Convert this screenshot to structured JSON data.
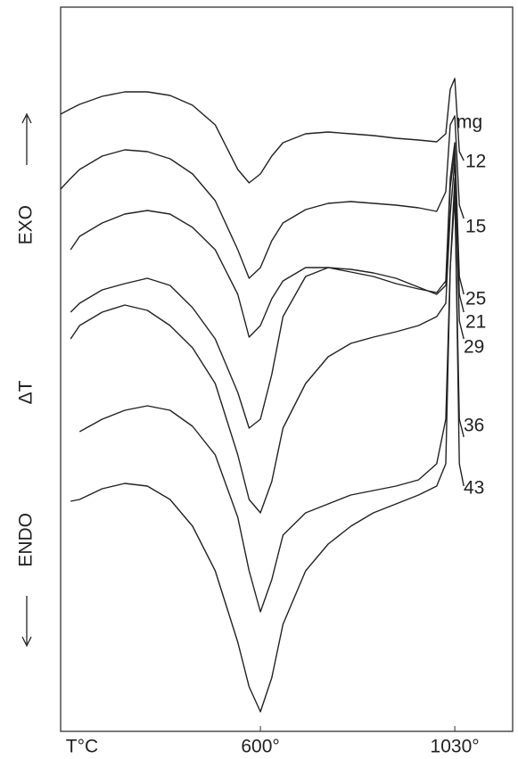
{
  "chart_data": {
    "type": "line",
    "xlabel": "T°C",
    "ylabel_top": "EXO",
    "ylabel": "ΔT",
    "ylabel_bottom": "ENDO",
    "unit_label": "mg",
    "x": [
      158,
      180,
      200,
      250,
      300,
      350,
      400,
      450,
      500,
      550,
      575,
      600,
      625,
      650,
      700,
      750,
      800,
      850,
      900,
      950,
      990,
      1010,
      1020,
      1030,
      1040,
      1050,
      1080
    ],
    "xlim": [
      158,
      1158
    ],
    "xticks": [
      {
        "value": 600,
        "label": "600°"
      },
      {
        "value": 1030,
        "label": "1030°"
      }
    ],
    "ylim": [
      0,
      812
    ],
    "color": "#222222",
    "series": [
      {
        "name": "12",
        "values": [
          692,
          698,
          703,
          712,
          717,
          717,
          713,
          702,
          680,
          630,
          615,
          625,
          645,
          660,
          670,
          672,
          670,
          668,
          665,
          663,
          661,
          670,
          720,
          732,
          650,
          640,
          null
        ]
      },
      {
        "name": "15",
        "values": [
          608,
          620,
          630,
          645,
          652,
          650,
          642,
          625,
          595,
          540,
          508,
          520,
          550,
          570,
          585,
          592,
          594,
          592,
          590,
          587,
          583,
          605,
          680,
          690,
          590,
          575,
          null
        ]
      },
      {
        "name": "25",
        "values": [
          null,
          540,
          555,
          570,
          580,
          584,
          580,
          565,
          540,
          490,
          442,
          455,
          485,
          505,
          520,
          520,
          515,
          510,
          502,
          496,
          492,
          505,
          620,
          660,
          510,
          490,
          null
        ]
      },
      {
        "name": "21",
        "values": [
          null,
          470,
          480,
          495,
          502,
          508,
          500,
          475,
          440,
          380,
          340,
          350,
          400,
          465,
          510,
          520,
          518,
          514,
          508,
          498,
          490,
          500,
          610,
          650,
          490,
          470,
          null
        ]
      },
      {
        "name": "29",
        "values": [
          null,
          440,
          455,
          470,
          478,
          472,
          455,
          430,
          390,
          310,
          260,
          245,
          280,
          340,
          390,
          420,
          435,
          442,
          448,
          455,
          465,
          480,
          580,
          640,
          460,
          440,
          null
        ]
      },
      {
        "name": "36",
        "values": [
          null,
          null,
          336,
          350,
          360,
          365,
          360,
          342,
          310,
          240,
          180,
          134,
          170,
          220,
          245,
          255,
          265,
          270,
          275,
          282,
          300,
          350,
          520,
          600,
          350,
          330,
          null
        ]
      },
      {
        "name": "43",
        "values": [
          null,
          258,
          260,
          272,
          278,
          275,
          260,
          230,
          180,
          100,
          50,
          22,
          60,
          120,
          180,
          210,
          230,
          245,
          255,
          265,
          275,
          300,
          520,
          620,
          300,
          275,
          null
        ]
      }
    ]
  }
}
